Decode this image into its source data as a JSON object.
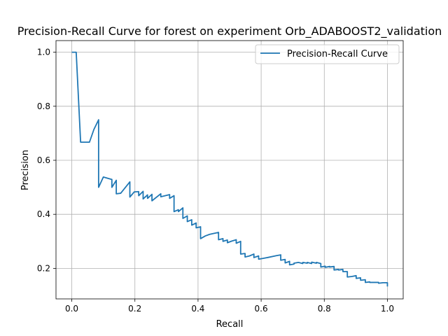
{
  "chart_data": {
    "type": "line",
    "title": "Precision-Recall Curve for forest on experiment Orb_ADABOOST2_validation",
    "xlabel": "Recall",
    "ylabel": "Precision",
    "xlim": [
      -0.05,
      1.05
    ],
    "ylim": [
      0.087,
      1.043
    ],
    "xticks": [
      0.0,
      0.2,
      0.4,
      0.6,
      0.8,
      1.0
    ],
    "xtick_labels": [
      "0.0",
      "0.2",
      "0.4",
      "0.6",
      "0.8",
      "1.0"
    ],
    "yticks": [
      0.2,
      0.4,
      0.6,
      0.8,
      1.0
    ],
    "ytick_labels": [
      "0.2",
      "0.4",
      "0.6",
      "0.8",
      "1.0"
    ],
    "grid": true,
    "legend": {
      "position": "top-right",
      "entries": [
        "Precision-Recall Curve"
      ]
    },
    "colors": {
      "series": "#1f77b4"
    },
    "series": [
      {
        "name": "Precision-Recall Curve",
        "x": [
          0.0,
          0.014,
          0.028,
          0.028,
          0.056,
          0.07,
          0.085,
          0.085,
          0.1,
          0.127,
          0.127,
          0.141,
          0.141,
          0.155,
          0.184,
          0.184,
          0.198,
          0.212,
          0.212,
          0.226,
          0.226,
          0.24,
          0.24,
          0.254,
          0.254,
          0.282,
          0.282,
          0.31,
          0.31,
          0.324,
          0.324,
          0.338,
          0.338,
          0.352,
          0.352,
          0.366,
          0.366,
          0.38,
          0.38,
          0.394,
          0.394,
          0.408,
          0.408,
          0.423,
          0.423,
          0.437,
          0.465,
          0.465,
          0.479,
          0.479,
          0.493,
          0.493,
          0.507,
          0.521,
          0.521,
          0.535,
          0.535,
          0.549,
          0.549,
          0.563,
          0.577,
          0.577,
          0.592,
          0.592,
          0.606,
          0.606,
          0.62,
          0.648,
          0.662,
          0.662,
          0.676,
          0.676,
          0.69,
          0.69,
          0.704,
          0.704,
          0.718,
          0.732,
          0.732,
          0.746,
          0.746,
          0.76,
          0.76,
          0.775,
          0.775,
          0.789,
          0.789,
          0.803,
          0.803,
          0.817,
          0.817,
          0.831,
          0.831,
          0.845,
          0.845,
          0.859,
          0.859,
          0.873,
          0.873,
          0.887,
          0.887,
          0.901,
          0.901,
          0.915,
          0.915,
          0.93,
          0.93,
          0.944,
          0.944,
          0.958,
          0.958,
          0.972,
          0.972,
          0.986,
          1.0,
          1.0
        ],
        "y": [
          1.0,
          1.0,
          0.667,
          0.667,
          0.667,
          0.714,
          0.75,
          0.5,
          0.538,
          0.529,
          0.5,
          0.526,
          0.476,
          0.478,
          0.52,
          0.464,
          0.483,
          0.484,
          0.469,
          0.485,
          0.457,
          0.472,
          0.459,
          0.474,
          0.45,
          0.476,
          0.465,
          0.473,
          0.459,
          0.469,
          0.41,
          0.417,
          0.41,
          0.424,
          0.385,
          0.394,
          0.373,
          0.38,
          0.36,
          0.368,
          0.35,
          0.354,
          0.31,
          0.32,
          0.32,
          0.326,
          0.333,
          0.306,
          0.31,
          0.3,
          0.305,
          0.295,
          0.301,
          0.306,
          0.293,
          0.3,
          0.253,
          0.255,
          0.242,
          0.246,
          0.253,
          0.24,
          0.246,
          0.234,
          0.237,
          0.237,
          0.24,
          0.247,
          0.25,
          0.23,
          0.233,
          0.22,
          0.226,
          0.213,
          0.216,
          0.219,
          0.222,
          0.218,
          0.222,
          0.219,
          0.222,
          0.218,
          0.223,
          0.219,
          0.222,
          0.218,
          0.205,
          0.208,
          0.204,
          0.207,
          0.205,
          0.207,
          0.194,
          0.196,
          0.194,
          0.196,
          0.188,
          0.188,
          0.168,
          0.17,
          0.17,
          0.173,
          0.163,
          0.165,
          0.156,
          0.158,
          0.148,
          0.15,
          0.148,
          0.148,
          0.148,
          0.148,
          0.145,
          0.147,
          0.147,
          0.133
        ]
      }
    ]
  }
}
